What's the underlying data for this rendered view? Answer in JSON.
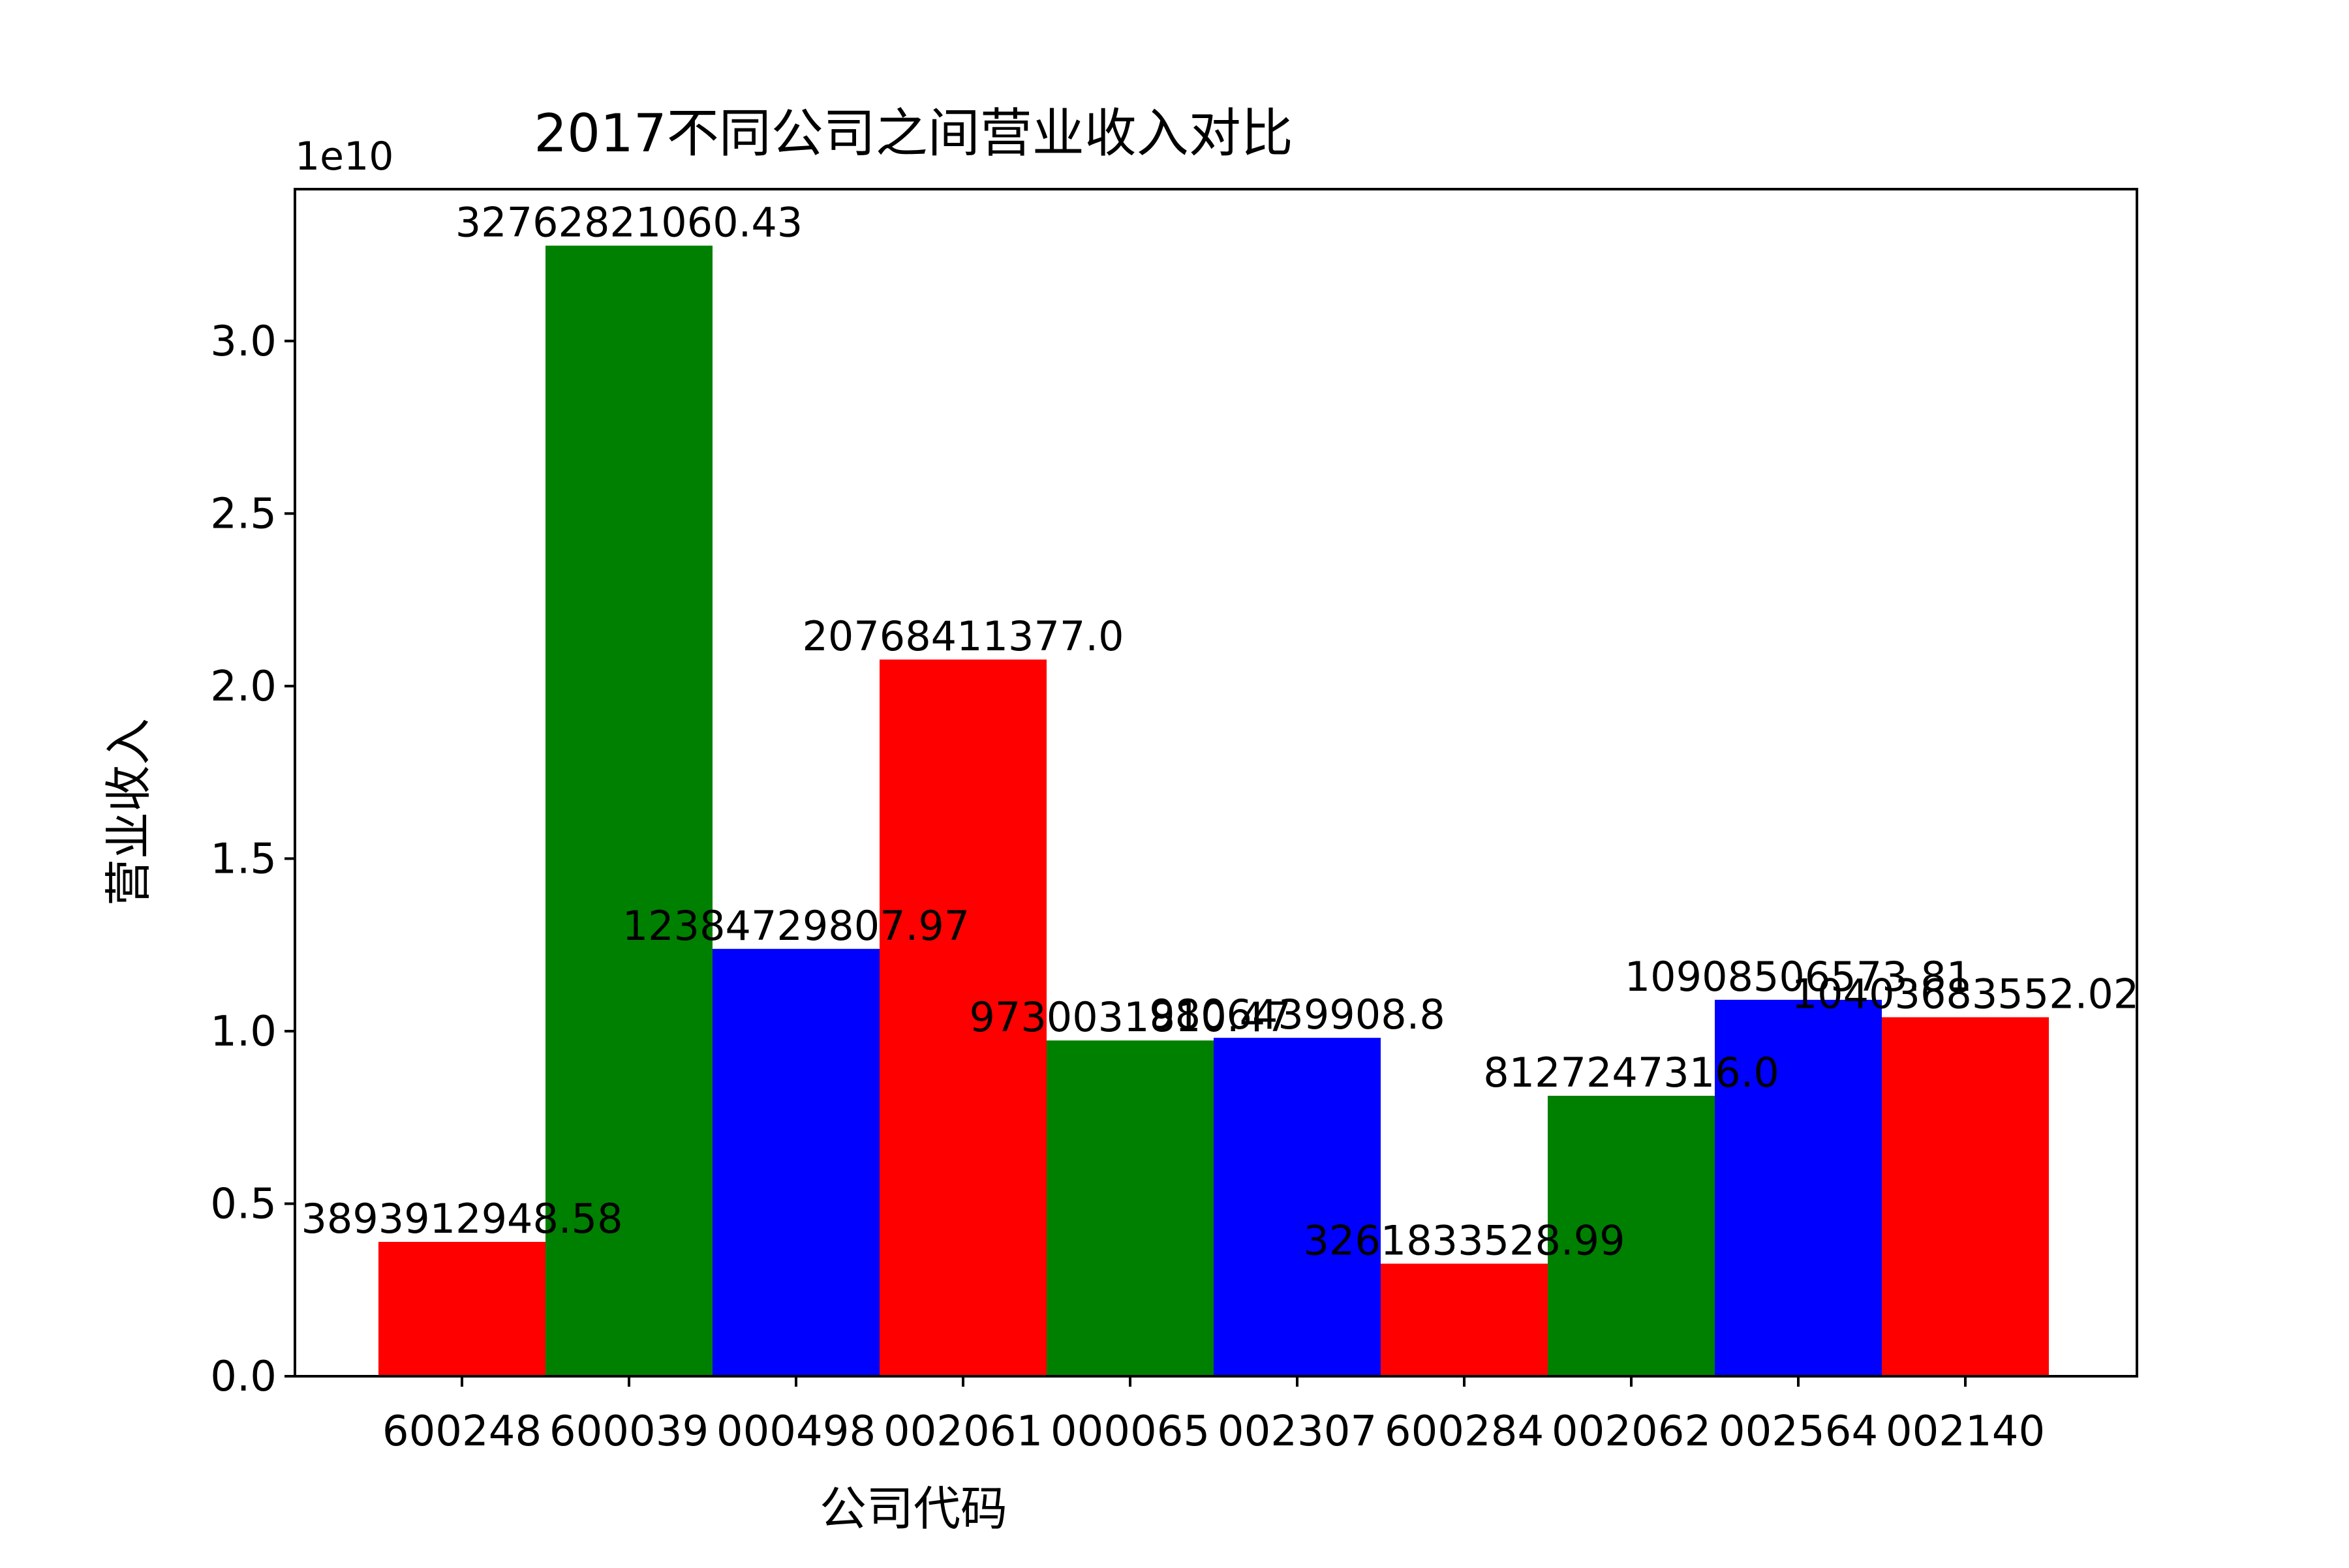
{
  "chart_data": {
    "type": "bar",
    "title": "2017不同公司之间营业收入对比",
    "xlabel": "公司代码",
    "ylabel": "营业收入",
    "y_offset_label": "1e10",
    "ylim": [
      0,
      34400000000.0
    ],
    "yticks": [
      0.0,
      0.5,
      1.0,
      1.5,
      2.0,
      2.5,
      3.0
    ],
    "ytick_labels": [
      "0.0",
      "0.5",
      "1.0",
      "1.5",
      "2.0",
      "2.5",
      "3.0"
    ],
    "categories": [
      "600248",
      "600039",
      "000498",
      "002061",
      "000065",
      "002307",
      "600284",
      "002062",
      "002564",
      "002140"
    ],
    "values": [
      3893912948.58,
      32762821060.43,
      12384729807.97,
      20768411377.0,
      9730031810.47,
      9806439908.8,
      3261833528.99,
      8127247316.0,
      10908506573.81,
      10403683552.02
    ],
    "value_labels": [
      "3893912948.58",
      "32762821060.43",
      "12384729807.97",
      "20768411377.0",
      "9730031810.47",
      "9806439908.8",
      "3261833528.99",
      "8127247316.0",
      "10908506573.81",
      "10403683552.02"
    ],
    "bar_colors": [
      "#ff0000",
      "#008000",
      "#0000ff",
      "#ff0000",
      "#008000",
      "#0000ff",
      "#ff0000",
      "#008000",
      "#0000ff",
      "#ff0000"
    ],
    "grid": false,
    "legend": false
  }
}
